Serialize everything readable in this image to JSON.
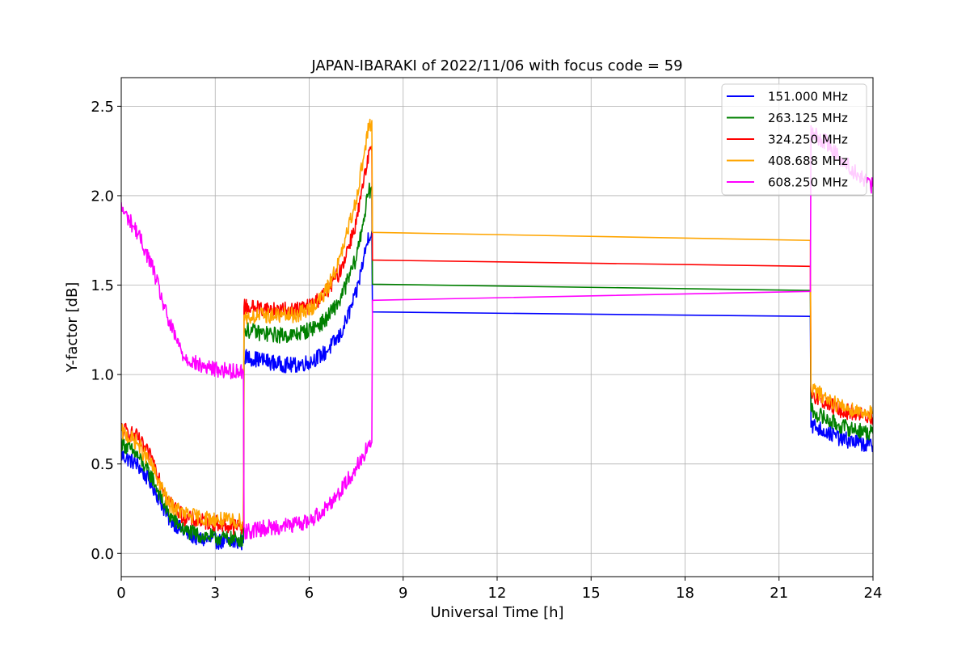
{
  "chart_data": {
    "type": "line",
    "title": "JAPAN-IBARAKI of 2022/11/06 with focus code = 59",
    "xlabel": "Universal Time [h]",
    "ylabel": "Y-factor [dB]",
    "xlim": [
      0,
      24
    ],
    "ylim": [
      -0.13,
      2.66
    ],
    "xticks": [
      0,
      3,
      6,
      9,
      12,
      15,
      18,
      21,
      24
    ],
    "xtick_labels": [
      "0",
      "3",
      "6",
      "9",
      "12",
      "15",
      "18",
      "21",
      "24"
    ],
    "yticks": [
      0.0,
      0.5,
      1.0,
      1.5,
      2.0,
      2.5
    ],
    "ytick_labels": [
      "0.0",
      "0.5",
      "1.0",
      "1.5",
      "2.0",
      "2.5"
    ],
    "grid": true,
    "legend_position": "top-right",
    "series": [
      {
        "name": "151.000 MHz",
        "color": "#0000ff",
        "noise": 0.045,
        "points": [
          [
            0,
            0.55
          ],
          [
            0.5,
            0.5
          ],
          [
            1,
            0.38
          ],
          [
            1.5,
            0.2
          ],
          [
            2,
            0.12
          ],
          [
            2.5,
            0.08
          ],
          [
            3,
            0.07
          ],
          [
            3.5,
            0.06
          ],
          [
            3.9,
            0.06
          ],
          [
            3.92,
            1.1
          ],
          [
            4.5,
            1.08
          ],
          [
            5,
            1.06
          ],
          [
            5.5,
            1.05
          ],
          [
            6,
            1.07
          ],
          [
            6.5,
            1.12
          ],
          [
            7,
            1.22
          ],
          [
            7.5,
            1.45
          ],
          [
            7.9,
            1.78
          ],
          [
            8,
            1.8
          ],
          [
            8.02,
            1.35
          ],
          [
            22,
            1.325
          ],
          [
            22.02,
            0.72
          ],
          [
            22.5,
            0.68
          ],
          [
            23,
            0.64
          ],
          [
            23.5,
            0.62
          ],
          [
            24,
            0.6
          ]
        ]
      },
      {
        "name": "263.125 MHz",
        "color": "#008000",
        "noise": 0.045,
        "points": [
          [
            0,
            0.62
          ],
          [
            0.5,
            0.55
          ],
          [
            1,
            0.42
          ],
          [
            1.5,
            0.22
          ],
          [
            2,
            0.13
          ],
          [
            2.5,
            0.1
          ],
          [
            3,
            0.09
          ],
          [
            3.5,
            0.08
          ],
          [
            3.9,
            0.08
          ],
          [
            3.92,
            1.25
          ],
          [
            4.5,
            1.23
          ],
          [
            5,
            1.22
          ],
          [
            5.5,
            1.22
          ],
          [
            6,
            1.25
          ],
          [
            6.5,
            1.3
          ],
          [
            7,
            1.42
          ],
          [
            7.5,
            1.65
          ],
          [
            7.9,
            2.02
          ],
          [
            8,
            2.05
          ],
          [
            8.02,
            1.505
          ],
          [
            22,
            1.47
          ],
          [
            22.02,
            0.8
          ],
          [
            22.5,
            0.75
          ],
          [
            23,
            0.71
          ],
          [
            23.5,
            0.69
          ],
          [
            24,
            0.67
          ]
        ]
      },
      {
        "name": "324.250 MHz",
        "color": "#ff0000",
        "noise": 0.045,
        "points": [
          [
            0,
            0.7
          ],
          [
            0.5,
            0.65
          ],
          [
            1,
            0.52
          ],
          [
            1.5,
            0.3
          ],
          [
            2,
            0.2
          ],
          [
            2.5,
            0.18
          ],
          [
            3,
            0.17
          ],
          [
            3.5,
            0.15
          ],
          [
            3.9,
            0.15
          ],
          [
            3.92,
            1.38
          ],
          [
            4.5,
            1.37
          ],
          [
            5,
            1.36
          ],
          [
            5.5,
            1.36
          ],
          [
            6,
            1.38
          ],
          [
            6.5,
            1.45
          ],
          [
            7,
            1.58
          ],
          [
            7.5,
            1.85
          ],
          [
            7.9,
            2.22
          ],
          [
            8,
            2.25
          ],
          [
            8.02,
            1.64
          ],
          [
            22,
            1.605
          ],
          [
            22.02,
            0.9
          ],
          [
            22.5,
            0.84
          ],
          [
            23,
            0.8
          ],
          [
            23.5,
            0.78
          ],
          [
            24,
            0.76
          ]
        ]
      },
      {
        "name": "408.688 MHz",
        "color": "#ffa500",
        "noise": 0.045,
        "points": [
          [
            0,
            0.68
          ],
          [
            0.5,
            0.62
          ],
          [
            1,
            0.48
          ],
          [
            1.5,
            0.28
          ],
          [
            2,
            0.22
          ],
          [
            2.5,
            0.2
          ],
          [
            3,
            0.19
          ],
          [
            3.5,
            0.18
          ],
          [
            3.9,
            0.18
          ],
          [
            3.92,
            1.32
          ],
          [
            4.5,
            1.33
          ],
          [
            5,
            1.33
          ],
          [
            5.5,
            1.33
          ],
          [
            6,
            1.36
          ],
          [
            6.5,
            1.45
          ],
          [
            7,
            1.65
          ],
          [
            7.5,
            1.98
          ],
          [
            7.9,
            2.38
          ],
          [
            8,
            2.42
          ],
          [
            8.02,
            1.795
          ],
          [
            22,
            1.75
          ],
          [
            22.02,
            0.92
          ],
          [
            22.5,
            0.87
          ],
          [
            23,
            0.82
          ],
          [
            23.5,
            0.8
          ],
          [
            24,
            0.78
          ]
        ]
      },
      {
        "name": "608.250 MHz",
        "color": "#ff00ff",
        "noise": 0.045,
        "points": [
          [
            0,
            1.93
          ],
          [
            0.5,
            1.8
          ],
          [
            1,
            1.6
          ],
          [
            1.5,
            1.3
          ],
          [
            2,
            1.1
          ],
          [
            2.5,
            1.05
          ],
          [
            3,
            1.03
          ],
          [
            3.5,
            1.02
          ],
          [
            3.9,
            1.02
          ],
          [
            3.92,
            0.12
          ],
          [
            4.5,
            0.14
          ],
          [
            5,
            0.15
          ],
          [
            5.5,
            0.16
          ],
          [
            6,
            0.18
          ],
          [
            6.5,
            0.25
          ],
          [
            7,
            0.35
          ],
          [
            7.5,
            0.48
          ],
          [
            7.9,
            0.6
          ],
          [
            8,
            0.62
          ],
          [
            8.02,
            1.415
          ],
          [
            22,
            1.465
          ],
          [
            22.02,
            2.35
          ],
          [
            22.5,
            2.3
          ],
          [
            23,
            2.2
          ],
          [
            23.5,
            2.12
          ],
          [
            24,
            2.05
          ]
        ]
      }
    ]
  }
}
